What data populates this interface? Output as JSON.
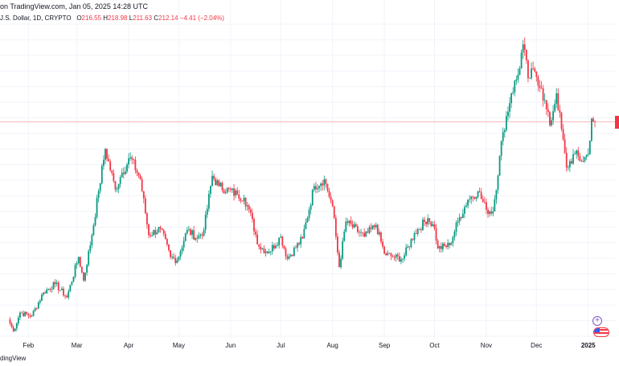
{
  "header": {
    "source_line": "on TradingView.com, Jan 05, 2025 14:28 UTC",
    "symbol_line": "J.S. Dollar, 1D, CRYPTO",
    "ohlc": {
      "o_label": "O",
      "o_value": "216.55",
      "h_label": "H",
      "h_value": "218.98",
      "l_label": "L",
      "l_value": "211.63",
      "c_label": "C",
      "c_value": "212.14",
      "change": "−4.41 (−2.04%)"
    }
  },
  "footer": {
    "brand": "dingView"
  },
  "colors": {
    "up": "#089981",
    "down": "#f23645",
    "grid": "#f0f3fa",
    "price_line": "#f23645",
    "accent": "#7e57c2"
  },
  "icons": {
    "compare": "plus-circle-icon",
    "currency": "us-flag-icon"
  },
  "chart_data": {
    "type": "candlestick",
    "interval": "1D",
    "x_axis": {
      "tick_labels": [
        "Feb",
        "Mar",
        "Apr",
        "May",
        "Jun",
        "Jul",
        "Aug",
        "Sep",
        "Oct",
        "Nov",
        "Dec",
        "2025"
      ],
      "tick_dates": [
        "2024-02-01",
        "2024-03-01",
        "2024-04-01",
        "2024-05-01",
        "2024-06-01",
        "2024-07-01",
        "2024-08-01",
        "2024-09-01",
        "2024-10-01",
        "2024-11-01",
        "2024-12-01",
        "2025-01-01"
      ],
      "bold_labels": [
        "2025"
      ],
      "range": [
        "2024-01-15",
        "2025-01-17"
      ]
    },
    "y_axis": {
      "range": [
        85,
        270
      ],
      "tick_labels_visible": false
    },
    "grid": true,
    "current_price": 212.14,
    "keypoints": [
      [
        "2024-01-20",
        95
      ],
      [
        "2024-01-23",
        88
      ],
      [
        "2024-01-27",
        99
      ],
      [
        "2024-02-03",
        97
      ],
      [
        "2024-02-10",
        111
      ],
      [
        "2024-02-17",
        116
      ],
      [
        "2024-02-24",
        108
      ],
      [
        "2024-03-02",
        132
      ],
      [
        "2024-03-05",
        118
      ],
      [
        "2024-03-10",
        145
      ],
      [
        "2024-03-14",
        171
      ],
      [
        "2024-03-18",
        196
      ],
      [
        "2024-03-24",
        172
      ],
      [
        "2024-03-28",
        182
      ],
      [
        "2024-04-02",
        191
      ],
      [
        "2024-04-08",
        178
      ],
      [
        "2024-04-13",
        145
      ],
      [
        "2024-04-20",
        149
      ],
      [
        "2024-04-26",
        132
      ],
      [
        "2024-04-30",
        130
      ],
      [
        "2024-05-06",
        148
      ],
      [
        "2024-05-12",
        143
      ],
      [
        "2024-05-16",
        148
      ],
      [
        "2024-05-21",
        180
      ],
      [
        "2024-05-25",
        174
      ],
      [
        "2024-06-05",
        169
      ],
      [
        "2024-06-09",
        167
      ],
      [
        "2024-06-12",
        160
      ],
      [
        "2024-06-18",
        138
      ],
      [
        "2024-06-24",
        135
      ],
      [
        "2024-07-01",
        144
      ],
      [
        "2024-07-05",
        131
      ],
      [
        "2024-07-14",
        143
      ],
      [
        "2024-07-21",
        174
      ],
      [
        "2024-07-27",
        178
      ],
      [
        "2024-08-01",
        162
      ],
      [
        "2024-08-05",
        126
      ],
      [
        "2024-08-09",
        153
      ],
      [
        "2024-08-20",
        144
      ],
      [
        "2024-08-27",
        151
      ],
      [
        "2024-09-01",
        134
      ],
      [
        "2024-09-06",
        132
      ],
      [
        "2024-09-12",
        131
      ],
      [
        "2024-09-19",
        146
      ],
      [
        "2024-09-27",
        155
      ],
      [
        "2024-10-01",
        149
      ],
      [
        "2024-10-03",
        137
      ],
      [
        "2024-10-10",
        139
      ],
      [
        "2024-10-15",
        153
      ],
      [
        "2024-10-21",
        166
      ],
      [
        "2024-10-27",
        171
      ],
      [
        "2024-11-01",
        160
      ],
      [
        "2024-11-05",
        159
      ],
      [
        "2024-11-11",
        206
      ],
      [
        "2024-11-16",
        229
      ],
      [
        "2024-11-20",
        240
      ],
      [
        "2024-11-23",
        258
      ],
      [
        "2024-11-26",
        238
      ],
      [
        "2024-11-30",
        242
      ],
      [
        "2024-12-04",
        232
      ],
      [
        "2024-12-09",
        210
      ],
      [
        "2024-12-13",
        229
      ],
      [
        "2024-12-19",
        185
      ],
      [
        "2024-12-24",
        193
      ],
      [
        "2024-12-28",
        189
      ],
      [
        "2025-01-01",
        193
      ],
      [
        "2025-01-03",
        214
      ],
      [
        "2025-01-05",
        212.14
      ]
    ]
  }
}
